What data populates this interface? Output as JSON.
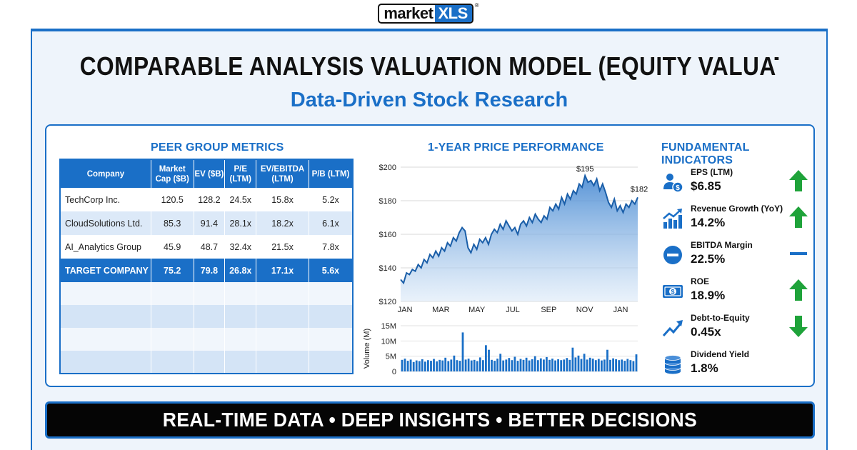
{
  "logo": {
    "part1": "market",
    "part2": "XLS",
    "reg": "®"
  },
  "title": "COMPARABLE ANALYSIS VALUATION MODEL (EQUITY VALUAT",
  "subtitle": "Data-Driven Stock Research",
  "peer": {
    "title": "PEER GROUP METRICS",
    "headers": [
      "Company",
      "Market Cap ($B)",
      "EV ($B)",
      "P/E (LTM)",
      "EV/EBITDA (LTM)",
      "P/B (LTM)"
    ],
    "rows": [
      [
        "TechCorp Inc.",
        "120.5",
        "128.2",
        "24.5x",
        "15.8x",
        "5.2x"
      ],
      [
        "CloudSolutions Ltd.",
        "85.3",
        "91.4",
        "28.1x",
        "18.2x",
        "6.1x"
      ],
      [
        "AI_Analytics Group",
        "45.9",
        "48.7",
        "32.4x",
        "21.5x",
        "7.8x"
      ]
    ],
    "target": [
      "TARGET COMPANY",
      "75.2",
      "79.8",
      "26.8x",
      "17.1x",
      "5.6x"
    ]
  },
  "chart_data": {
    "type": "line",
    "title": "1-YEAR PRICE PERFORMANCE",
    "x_labels": [
      "JAN",
      "MAR",
      "MAY",
      "JUL",
      "SEP",
      "NOV",
      "JAN"
    ],
    "y_ticks": [
      "$200",
      "$180",
      "$160",
      "$140",
      "$120"
    ],
    "ylim": [
      120,
      200
    ],
    "annotations": [
      {
        "label": "$195",
        "value": 195
      },
      {
        "label": "$182",
        "value": 182
      }
    ],
    "price": [
      133,
      131,
      137,
      136,
      139,
      138,
      142,
      140,
      145,
      143,
      148,
      146,
      150,
      147,
      152,
      150,
      155,
      153,
      158,
      156,
      161,
      164,
      162,
      152,
      149,
      154,
      151,
      157,
      155,
      158,
      154,
      160,
      163,
      161,
      166,
      163,
      168,
      165,
      162,
      164,
      160,
      166,
      168,
      165,
      170,
      167,
      172,
      169,
      167,
      171,
      169,
      176,
      174,
      178,
      175,
      182,
      178,
      184,
      181,
      186,
      184,
      190,
      188,
      195,
      191,
      192,
      189,
      193,
      186,
      190,
      185,
      179,
      176,
      181,
      174,
      177,
      173,
      178,
      176,
      180,
      178,
      182
    ],
    "volume": {
      "ylabel": "Volume (M)",
      "y_ticks": [
        "15M",
        "10M",
        "5M",
        "0"
      ],
      "ylim": [
        0,
        15
      ],
      "values": [
        3.8,
        4.2,
        3.5,
        3.9,
        3.1,
        3.6,
        3.4,
        4.0,
        3.2,
        3.7,
        3.5,
        4.1,
        3.3,
        3.8,
        3.6,
        4.5,
        3.4,
        3.9,
        5.2,
        3.7,
        3.5,
        12.8,
        3.9,
        4.2,
        3.6,
        3.8,
        3.4,
        4.6,
        3.7,
        8.6,
        7.1,
        3.8,
        3.5,
        4.2,
        5.8,
        3.6,
        3.9,
        4.4,
        3.7,
        4.8,
        3.5,
        4.1,
        3.8,
        4.5,
        3.6,
        4.0,
        5.0,
        3.7,
        4.3,
        3.9,
        4.7,
        3.8,
        4.2,
        3.6,
        4.0,
        3.7,
        3.9,
        4.4,
        3.8,
        7.8,
        4.6,
        5.2,
        4.1,
        5.8,
        3.9,
        4.5,
        4.2,
        3.7,
        4.1,
        3.6,
        3.9,
        7.1,
        3.8,
        4.3,
        4.0,
        3.7,
        3.9,
        3.5,
        4.1,
        3.7,
        3.4,
        5.6
      ]
    }
  },
  "fundamentals": {
    "title": "FUNDAMENTAL INDICATORS",
    "items": [
      {
        "label": "EPS (LTM)",
        "value": "$6.85",
        "icon": "person-dollar-icon",
        "trend": "up"
      },
      {
        "label": "Revenue Growth (YoY)",
        "value": "14.2%",
        "icon": "bar-growth-icon",
        "trend": "up"
      },
      {
        "label": "EBITDA Margin",
        "value": "22.5%",
        "icon": "minus-circle-icon",
        "trend": "flat"
      },
      {
        "label": "ROE",
        "value": "18.9%",
        "icon": "banknote-icon",
        "trend": "up"
      },
      {
        "label": "Debt-to-Equity",
        "value": "0.45x",
        "icon": "trend-arrow-icon",
        "trend": "down"
      },
      {
        "label": "Dividend Yield",
        "value": "1.8%",
        "icon": "coin-stack-icon",
        "trend": "none"
      }
    ]
  },
  "banner": "REAL-TIME DATA • DEEP INSIGHTS • BETTER DECISIONS",
  "colors": {
    "brand_blue": "#1a6fc7",
    "up_green": "#1fa33a",
    "black": "#111111"
  }
}
